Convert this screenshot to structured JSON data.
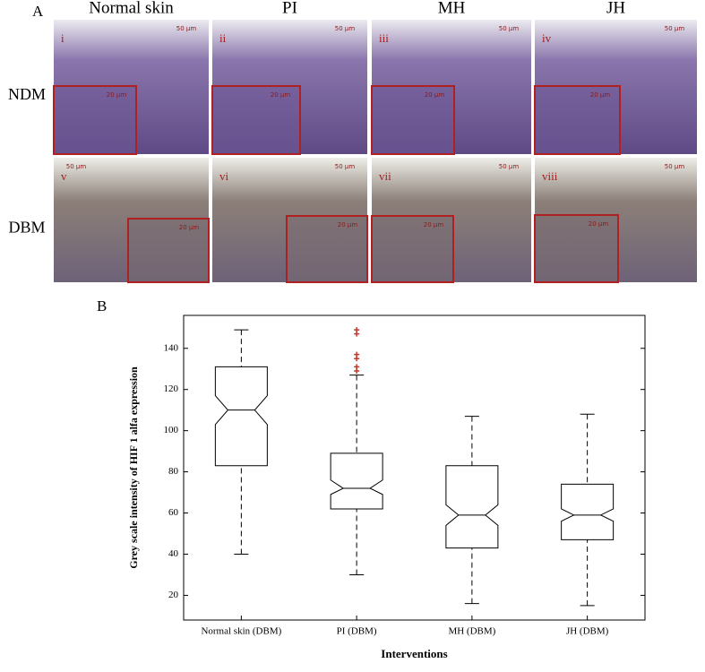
{
  "figure": {
    "panel_a": {
      "label": "A",
      "columns": [
        "Normal skin",
        "PI",
        "MH",
        "JH"
      ],
      "rows": [
        "NDM",
        "DBM"
      ],
      "panels": [
        "i",
        "ii",
        "iii",
        "iv",
        "v",
        "vi",
        "vii",
        "viii"
      ],
      "scale_bar_labels": [
        "50 μm",
        "20 μm"
      ]
    }
  },
  "chart_data": {
    "type": "box",
    "panel_label": "B",
    "x_label": "Interventions",
    "y_label": "Grey scale intensity of HIF 1 alfa expression",
    "categories": [
      "Normal skin (DBM)",
      "PI (DBM)",
      "MH (DBM)",
      "JH (DBM)"
    ],
    "whisker_low": [
      40,
      30,
      16,
      15
    ],
    "q1": [
      83,
      62,
      43,
      47
    ],
    "notch_low": [
      103,
      69,
      54,
      56
    ],
    "median": [
      110,
      72,
      59,
      59
    ],
    "notch_high": [
      117,
      76,
      64,
      62
    ],
    "q3": [
      131,
      89,
      83,
      74
    ],
    "whisker_high": [
      149,
      127,
      107,
      108
    ],
    "outliers": [
      [],
      [
        129,
        131,
        135,
        137,
        147,
        149
      ],
      [],
      []
    ],
    "color": "#000000",
    "outlier_color": "#c0392b",
    "ylim": [
      8,
      156
    ],
    "yticks": [
      20,
      40,
      60,
      80,
      100,
      120,
      140
    ],
    "grid": false
  }
}
